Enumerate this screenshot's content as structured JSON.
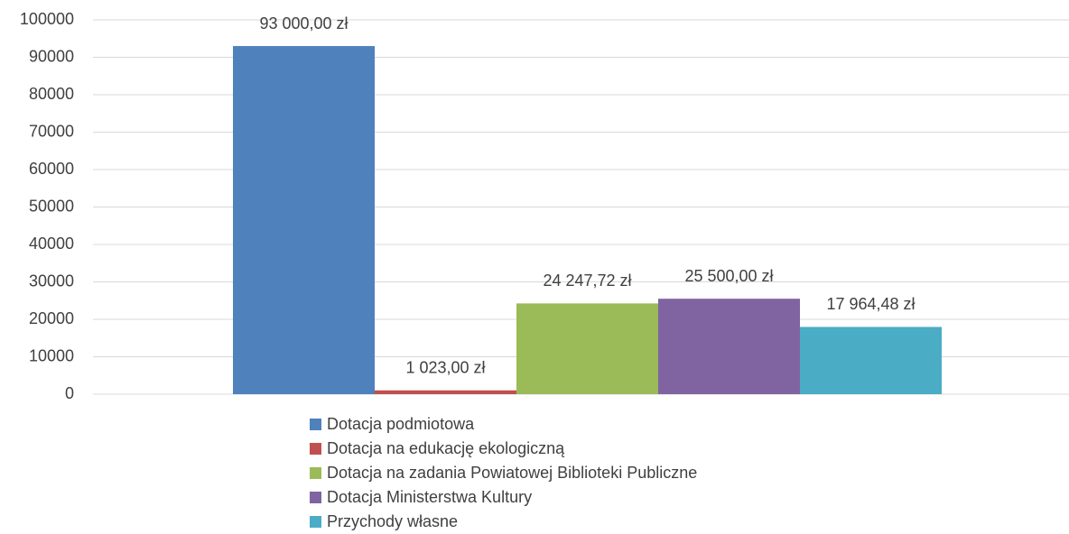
{
  "chart_data": {
    "type": "bar",
    "categories": [
      null
    ],
    "series": [
      {
        "name": "Dotacja podmiotowa",
        "color": "#4f81bd",
        "values": [
          93000
        ],
        "value_labels": [
          "93 000,00 zł"
        ]
      },
      {
        "name": "Dotacja na edukację ekologiczną",
        "color": "#c0504d",
        "values": [
          1023
        ],
        "value_labels": [
          "1 023,00 zł"
        ]
      },
      {
        "name": "Dotacja na zadania Powiatowej Biblioteki Publiczne",
        "color": "#9bbb59",
        "values": [
          24247.72
        ],
        "value_labels": [
          "24 247,72 zł"
        ]
      },
      {
        "name": "Dotacja Ministerstwa Kultury",
        "color": "#8064a2",
        "values": [
          25500
        ],
        "value_labels": [
          "25 500,00 zł"
        ]
      },
      {
        "name": "Przychody własne",
        "color": "#4bacc6",
        "values": [
          17964.48
        ],
        "value_labels": [
          "17 964,48 zł"
        ]
      }
    ],
    "ylim": [
      0,
      100000
    ],
    "yticks": [
      0,
      10000,
      20000,
      30000,
      40000,
      50000,
      60000,
      70000,
      80000,
      90000,
      100000
    ],
    "grid": true,
    "legend": "bottom"
  }
}
